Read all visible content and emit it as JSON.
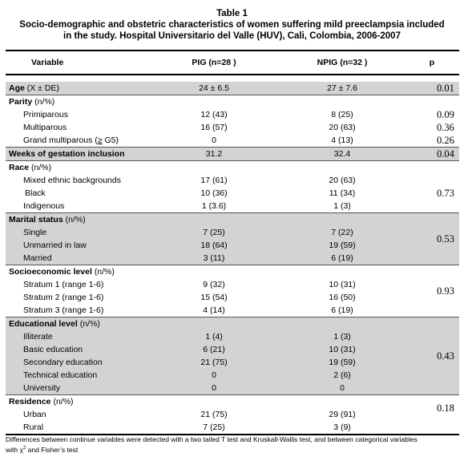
{
  "caption": {
    "line1": "Table 1",
    "line2": "Socio-demographic and obstetric characteristics of women suffering mild preeclampsia included",
    "line3": "in the study. Hospital Universitario del Valle (HUV), Cali, Colombia, 2006-2007"
  },
  "columns": [
    "Variable",
    "PIG (n=28 )",
    "NPIG (n=32 )",
    "p"
  ],
  "age": {
    "label": "Age",
    "unit": "(X ± DE)",
    "pig": "24 ± 6.5",
    "npig": "27 ± 7.6",
    "p": "0.01"
  },
  "parity": {
    "label": "Parity",
    "unit": "(n/%)",
    "rows": [
      {
        "label": "Primiparous",
        "pig": "12 (43)",
        "npig": "8 (25)",
        "p": "0.09"
      },
      {
        "label": "Multiparous",
        "pig": "16 (57)",
        "npig": "20 (63)",
        "p": "0.36"
      },
      {
        "label_pre": "Grand multiparous (",
        "label_ge": "≥",
        "label_post": " G5)",
        "pig": "0",
        "npig": "4 (13)",
        "p": "0.26"
      }
    ]
  },
  "weeks": {
    "label": "Weeks of gestation inclusion",
    "pig": "31.2",
    "npig": "32.4",
    "p": "0.04"
  },
  "race": {
    "label": "Race",
    "unit": "(n/%)",
    "p": "0.73",
    "rows": [
      {
        "label": "Mixed ethnic backgrounds",
        "pig": "17 (61)",
        "npig": "20 (63)"
      },
      {
        "label": "Black",
        "pig": "10 (36)",
        "npig": "11 (34)"
      },
      {
        "label": "Indigenous",
        "pig": "1 (3.6)",
        "npig": "1 (3)"
      }
    ]
  },
  "marital": {
    "label": "Marital status",
    "unit": "(n/%)",
    "p": "0.53",
    "rows": [
      {
        "label": "Single",
        "pig": "7 (25)",
        "npig": "7 (22)"
      },
      {
        "label": "Unmarried in law",
        "pig": "18 (64)",
        "npig": "19 (59)"
      },
      {
        "label": "Married",
        "pig": "3 (11)",
        "npig": "6 (19)"
      }
    ]
  },
  "socio": {
    "label": "Socioeconomic level",
    "unit": "(n/%)",
    "p": "0.93",
    "rows": [
      {
        "label": "Stratum 1 (range 1-6)",
        "pig": "9 (32)",
        "npig": "10 (31)"
      },
      {
        "label": "Stratum 2 (range 1-6)",
        "pig": "15 (54)",
        "npig": "16 (50)"
      },
      {
        "label": "Stratum 3 (range 1-6)",
        "pig": "4 (14)",
        "npig": "6 (19)"
      }
    ]
  },
  "education": {
    "label": "Educational level",
    "unit": "(n/%)",
    "p": "0.43",
    "rows": [
      {
        "label": "Illiterate",
        "pig": "1 (4)",
        "npig": "1 (3)"
      },
      {
        "label": "Basic education",
        "pig": "6 (21)",
        "npig": "10 (31)"
      },
      {
        "label": "Secondary education",
        "pig": "21 (75)",
        "npig": "19 (59)"
      },
      {
        "label": "Technical education",
        "pig": "0",
        "npig": "2 (6)"
      },
      {
        "label": "University",
        "pig": "0",
        "npig": "0"
      }
    ]
  },
  "residence": {
    "label": "Residence",
    "unit": "(n/%)",
    "p": "0.18",
    "rows": [
      {
        "label": "Urban",
        "pig": "21 (75)",
        "npig": "29 (91)"
      },
      {
        "label": "Rural",
        "pig": "7 (25)",
        "npig": "3 (9)"
      }
    ]
  },
  "footnote": {
    "part1": "Differences between continue variables were detected with a two tailed T test and Kruskall-Wallis test, and between categorical variables",
    "part2_pre": "with ",
    "chi": "χ",
    "chi_sup": "2",
    "part2_post": " and Fisher’s test"
  }
}
